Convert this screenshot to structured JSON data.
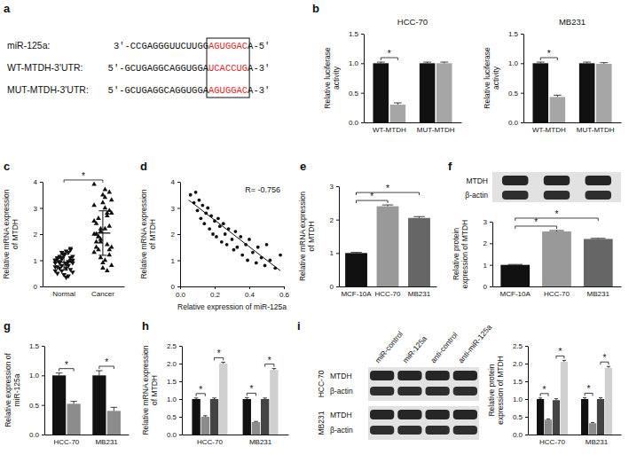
{
  "sequence_alignment": {
    "panel": "a",
    "match_color": "#e8262b",
    "rows": [
      {
        "label": "miR-125a:",
        "prefix": "3'-CCGAGGGUUCUUGG",
        "match": "AGUGGAC",
        "suffix": "A-5'"
      },
      {
        "label": "WT-MTDH-3'UTR:",
        "prefix": "5'-GCUGAGGCAGGUGGA",
        "match": "UCACCUG",
        "suffix": "A-3'"
      },
      {
        "label": "MUT-MTDH-3'UTR:",
        "prefix": "5'-GCUGAGGCAGGUGGA",
        "match": "AGUGGAC",
        "suffix": "A-3'"
      }
    ]
  },
  "chart_data": [
    {
      "panel": "b",
      "type": "bar",
      "title": "HCC-70",
      "categories": [
        "WT-MTDH",
        "MUT-MTDH"
      ],
      "y_label": "Relative luciferase activity",
      "ylim": [
        0,
        1.5
      ],
      "yticks": [
        {
          "value": 0,
          "label": "0.0"
        },
        0.5,
        {
          "value": 1,
          "label": "1.0"
        },
        1.5
      ],
      "series": [
        {
          "color": "#111111",
          "values": [
            1.0,
            1.0
          ],
          "errors": [
            0.02,
            0.02
          ]
        },
        {
          "color": "#a6a6a6",
          "values": [
            0.3,
            1.0
          ],
          "errors": [
            0.03,
            0.02
          ]
        }
      ],
      "significance": [
        {
          "text": "*",
          "category": 0,
          "series": [
            0,
            1
          ]
        }
      ]
    },
    {
      "type": "bar",
      "title": "MB231",
      "categories": [
        "WT-MTDH",
        "MUT-MTDH"
      ],
      "y_label": "Relative luciferase activity",
      "ylim": [
        0,
        1.5
      ],
      "yticks": [
        {
          "value": 0,
          "label": "0.0"
        },
        0.5,
        {
          "value": 1,
          "label": "1.0"
        },
        1.5
      ],
      "series": [
        {
          "color": "#111111",
          "values": [
            1.0,
            1.0
          ],
          "errors": [
            0.02,
            0.02
          ]
        },
        {
          "color": "#a6a6a6",
          "values": [
            0.43,
            0.99
          ],
          "errors": [
            0.03,
            0.02
          ]
        }
      ],
      "significance": [
        {
          "text": "*",
          "category": 0,
          "series": [
            0,
            1
          ]
        }
      ]
    },
    {
      "panel": "c",
      "type": "dot",
      "y_label": "Relative mRNA expression of MTDH",
      "ylim": [
        0,
        4
      ],
      "yticks": [
        0,
        1,
        2,
        3,
        4
      ],
      "groups": [
        {
          "name": "Normal",
          "marker": "triangle-down",
          "color": "#111111",
          "mean": 0.93,
          "sd": 0.3,
          "values": [
            0.9,
            1.1,
            0.7,
            1.3,
            0.5,
            1.0,
            0.8,
            1.2,
            0.95,
            0.6,
            1.4,
            0.85,
            1.05,
            0.75,
            1.15,
            0.4,
            1.25,
            0.9,
            1.0,
            0.65,
            1.35,
            0.8,
            1.1,
            0.55,
            0.95,
            1.2,
            0.7,
            1.0,
            1.45,
            0.85,
            0.6,
            1.05,
            0.9,
            1.3,
            0.45,
            1.15,
            0.75,
            1.0,
            0.35,
            1.1
          ]
        },
        {
          "name": "Cancer",
          "marker": "triangle",
          "color": "#111111",
          "mean": 2.04,
          "sd": 0.85,
          "values": [
            3.9,
            3.6,
            3.4,
            2.1,
            1.5,
            2.8,
            0.6,
            3.2,
            1.9,
            2.5,
            1.2,
            3.0,
            2.2,
            1.7,
            0.8,
            2.7,
            3.5,
            1.4,
            2.0,
            2.9,
            1.0,
            1.8,
            2.4,
            3.3,
            1.6,
            0.7,
            2.6,
            1.3,
            2.3,
            3.7,
            1.1,
            2.0,
            1.5,
            2.8,
            0.9,
            1.9,
            3.1,
            1.4,
            2.2,
            1.7
          ]
        }
      ],
      "significance": [
        {
          "text": "*",
          "categories": [
            0,
            1
          ]
        }
      ]
    },
    {
      "panel": "d",
      "type": "scatter",
      "color": "#111111",
      "marker": "circle",
      "x_label": "Relative expression of miR-125a",
      "y_label": "Relative mRNA expression of MTDH",
      "xlim": [
        0,
        0.6
      ],
      "xticks": [
        {
          "value": 0,
          "label": "0.0"
        },
        0.2,
        0.4,
        0.6
      ],
      "ylim": [
        0,
        4
      ],
      "yticks": [
        0,
        1,
        2,
        3,
        4
      ],
      "x": [
        0.06,
        0.08,
        0.09,
        0.1,
        0.11,
        0.12,
        0.13,
        0.14,
        0.15,
        0.16,
        0.17,
        0.18,
        0.19,
        0.2,
        0.21,
        0.22,
        0.23,
        0.24,
        0.25,
        0.26,
        0.27,
        0.28,
        0.3,
        0.31,
        0.32,
        0.33,
        0.35,
        0.36,
        0.38,
        0.39,
        0.4,
        0.42,
        0.44,
        0.45,
        0.47,
        0.49,
        0.5,
        0.52,
        0.55,
        0.58
      ],
      "y": [
        3.5,
        3.2,
        3.6,
        2.9,
        3.3,
        2.6,
        3.1,
        2.4,
        2.8,
        3.0,
        2.2,
        2.7,
        2.0,
        2.5,
        1.9,
        2.6,
        2.3,
        1.7,
        2.4,
        2.0,
        1.6,
        2.2,
        1.8,
        1.4,
        2.1,
        1.5,
        1.9,
        1.2,
        1.6,
        1.0,
        1.8,
        1.3,
        0.9,
        1.5,
        1.1,
        0.8,
        1.6,
        1.0,
        0.7,
        1.2
      ],
      "fit": {
        "x": [
          0.05,
          0.58
        ],
        "y": [
          3.3,
          0.6
        ]
      },
      "annotation": "R= -0.756"
    },
    {
      "panel": "e",
      "type": "bar",
      "categories": [
        "MCF-10A",
        "HCC-70",
        "MB231"
      ],
      "y_label": "Relative mRNA expression of MTDH",
      "ylim": [
        0,
        3
      ],
      "yticks": [
        0,
        1,
        2,
        3
      ],
      "values": [
        1.0,
        2.4,
        2.05
      ],
      "errors": [
        0.02,
        0.04,
        0.04
      ],
      "colors": [
        "#111111",
        "#999999",
        "#666666"
      ],
      "significance": [
        {
          "text": "*",
          "categories": [
            0,
            1
          ]
        },
        {
          "text": "*",
          "categories": [
            0,
            2
          ]
        }
      ]
    },
    {
      "panel": "f",
      "type": "bar",
      "categories": [
        "MCF-10A",
        "HCC-70",
        "MB231"
      ],
      "y_label": "Relative protein expression of MTDH",
      "ylim": [
        0,
        3
      ],
      "yticks": [
        0,
        1,
        2,
        3
      ],
      "values": [
        1.0,
        2.55,
        2.2
      ],
      "errors": [
        0.02,
        0.04,
        0.03
      ],
      "colors": [
        "#111111",
        "#999999",
        "#666666"
      ],
      "significance": [
        {
          "text": "*",
          "categories": [
            0,
            1
          ]
        },
        {
          "text": "*",
          "categories": [
            0,
            2
          ]
        }
      ],
      "blot": {
        "rows": [
          "MTDH",
          "β-actin"
        ]
      }
    },
    {
      "panel": "g",
      "type": "bar",
      "categories": [
        "HCC-70",
        "MB231"
      ],
      "y_label": "Relative expression of miR-125a",
      "ylim": [
        0,
        1.5
      ],
      "yticks": [
        {
          "value": 0,
          "label": "0.0"
        },
        0.5,
        {
          "value": 1,
          "label": "1.0"
        },
        1.5
      ],
      "series": [
        {
          "color": "#111111",
          "values": [
            1.0,
            1.0
          ],
          "errors": [
            0.04,
            0.08
          ]
        },
        {
          "color": "#8c8c8c",
          "values": [
            0.52,
            0.4
          ],
          "errors": [
            0.04,
            0.06
          ]
        }
      ],
      "significance": [
        {
          "text": "*",
          "category": 0,
          "series": [
            0,
            1
          ]
        },
        {
          "text": "*",
          "category": 1,
          "series": [
            0,
            1
          ]
        }
      ]
    },
    {
      "panel": "h",
      "type": "bar",
      "categories": [
        "HCC-70",
        "MB231"
      ],
      "y_label": "Relative mRNA expression of MTDH",
      "ylim": [
        0,
        2.5
      ],
      "yticks": [
        {
          "value": 0,
          "label": "0.0"
        },
        0.5,
        {
          "value": 1,
          "label": "1.0"
        },
        1.5,
        {
          "value": 2,
          "label": "2.0"
        },
        2.5
      ],
      "series": [
        {
          "color": "#111111",
          "values": [
            1.0,
            1.0
          ],
          "errors": [
            0.03,
            0.04
          ]
        },
        {
          "color": "#8c8c8c",
          "values": [
            0.5,
            0.35
          ],
          "errors": [
            0.03,
            0.02
          ]
        },
        {
          "color": "#444444",
          "values": [
            1.0,
            1.0
          ],
          "errors": [
            0.03,
            0.03
          ]
        },
        {
          "color": "#d0d0d0",
          "values": [
            2.0,
            1.82
          ],
          "errors": [
            0.04,
            0.04
          ]
        }
      ],
      "significance": [
        {
          "text": "*",
          "category": 0,
          "series": [
            0,
            1
          ]
        },
        {
          "text": "*",
          "category": 0,
          "series": [
            2,
            3
          ]
        },
        {
          "text": "*",
          "category": 1,
          "series": [
            0,
            1
          ]
        },
        {
          "text": "*",
          "category": 1,
          "series": [
            2,
            3
          ]
        }
      ]
    },
    {
      "panel": "i",
      "type": "bar",
      "categories": [
        "HCC-70",
        "MB231"
      ],
      "y_label": "Relative protein expression of MTDH",
      "ylim": [
        0,
        2.5
      ],
      "yticks": [
        {
          "value": 0,
          "label": "0.0"
        },
        0.5,
        {
          "value": 1,
          "label": "1.0"
        },
        1.5,
        {
          "value": 2,
          "label": "2.0"
        },
        2.5
      ],
      "series": [
        {
          "color": "#111111",
          "values": [
            1.0,
            1.0
          ],
          "errors": [
            0.03,
            0.04
          ]
        },
        {
          "color": "#8c8c8c",
          "values": [
            0.42,
            0.32
          ],
          "errors": [
            0.02,
            0.02
          ]
        },
        {
          "color": "#444444",
          "values": [
            0.97,
            1.0
          ],
          "errors": [
            0.04,
            0.04
          ]
        },
        {
          "color": "#d0d0d0",
          "values": [
            2.05,
            1.88
          ],
          "errors": [
            0.04,
            0.04
          ]
        }
      ],
      "significance": [
        {
          "text": "*",
          "category": 0,
          "series": [
            0,
            1
          ]
        },
        {
          "text": "*",
          "category": 0,
          "series": [
            2,
            3
          ]
        },
        {
          "text": "*",
          "category": 1,
          "series": [
            0,
            1
          ]
        },
        {
          "text": "*",
          "category": 1,
          "series": [
            2,
            3
          ]
        }
      ],
      "blot": {
        "columns": [
          "miR-control",
          "miR-125a",
          "anti-control",
          "anti-miR-125a"
        ],
        "groups": [
          "HCC-70",
          "MB231"
        ],
        "rows": [
          "MTDH",
          "β-actin"
        ]
      }
    }
  ]
}
